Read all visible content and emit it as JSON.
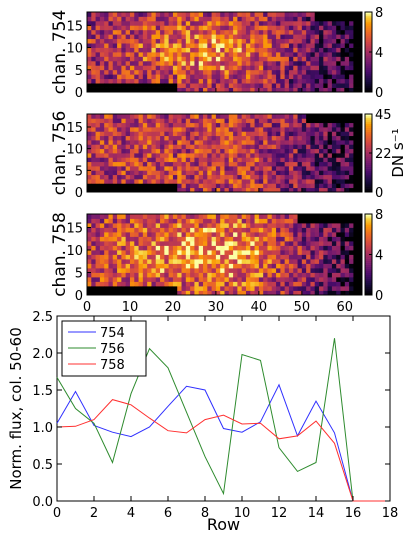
{
  "chart_data": [
    {
      "type": "heatmap",
      "ylabel": "chan. 754",
      "colorbar": {
        "ticks": [
          "0",
          "4",
          "8"
        ],
        "range": [
          0,
          8
        ],
        "label": ""
      },
      "yticks": [
        "0",
        "5",
        "10",
        "15"
      ],
      "xticks": [],
      "colormap": "inferno",
      "mask": "black band rows 0-1 for cols 0-20, black wedge top-right; data grid 64 cols x 18 rows",
      "seed": 7,
      "base": [
        0.45,
        0.78,
        0.35
      ]
    },
    {
      "type": "heatmap",
      "ylabel": "chan. 756",
      "colorbar": {
        "ticks": [
          "0",
          "22",
          "45"
        ],
        "range": [
          0,
          45
        ],
        "label": "DN s⁻¹"
      },
      "yticks": [
        "0",
        "5",
        "10",
        "15"
      ],
      "xticks": [],
      "colormap": "inferno",
      "seed": 19,
      "base": [
        0.55,
        0.6,
        0.4
      ]
    },
    {
      "type": "heatmap",
      "ylabel": "chan. 758",
      "colorbar": {
        "ticks": [
          "0",
          "4",
          "8"
        ],
        "range": [
          0,
          8
        ],
        "label": ""
      },
      "yticks": [
        "0",
        "5",
        "10",
        "15"
      ],
      "xticks": [
        "0",
        "10",
        "20",
        "30",
        "40",
        "50",
        "60"
      ],
      "colormap": "inferno",
      "seed": 31,
      "base": [
        0.55,
        0.85,
        0.4
      ]
    },
    {
      "type": "line",
      "xlabel": "Row",
      "ylabel": "Norm. flux, col. 50-60",
      "xlim": [
        0,
        18
      ],
      "ylim": [
        0.0,
        2.5
      ],
      "xticks": [
        "0",
        "2",
        "4",
        "6",
        "8",
        "10",
        "12",
        "14",
        "16",
        "18"
      ],
      "yticks": [
        "0.0",
        "0.5",
        "1.0",
        "1.5",
        "2.0",
        "2.5"
      ],
      "legend_position": "top-left",
      "x": [
        0,
        1,
        2,
        3,
        4,
        5,
        6,
        7,
        8,
        9,
        10,
        11,
        12,
        13,
        14,
        15,
        16,
        17,
        18
      ],
      "series": [
        {
          "name": "754",
          "color": "#3030ff",
          "values": [
            1.05,
            1.48,
            1.02,
            0.93,
            0.87,
            1.0,
            1.28,
            1.55,
            1.5,
            0.98,
            0.93,
            1.07,
            1.57,
            0.88,
            1.35,
            0.92,
            0.0,
            0.0,
            0.0
          ]
        },
        {
          "name": "756",
          "color": "#2e8b2e",
          "values": [
            1.67,
            1.25,
            1.05,
            0.52,
            1.45,
            2.06,
            1.8,
            1.2,
            0.6,
            0.1,
            1.98,
            1.9,
            0.72,
            0.4,
            0.52,
            2.2,
            0.0,
            0.0,
            0.0
          ]
        },
        {
          "name": "758",
          "color": "#ff3030",
          "values": [
            1.0,
            1.01,
            1.1,
            1.37,
            1.3,
            1.12,
            0.95,
            0.92,
            1.1,
            1.16,
            1.04,
            1.05,
            0.84,
            0.88,
            1.08,
            0.78,
            0.0,
            0.0,
            0.0
          ]
        }
      ]
    }
  ]
}
